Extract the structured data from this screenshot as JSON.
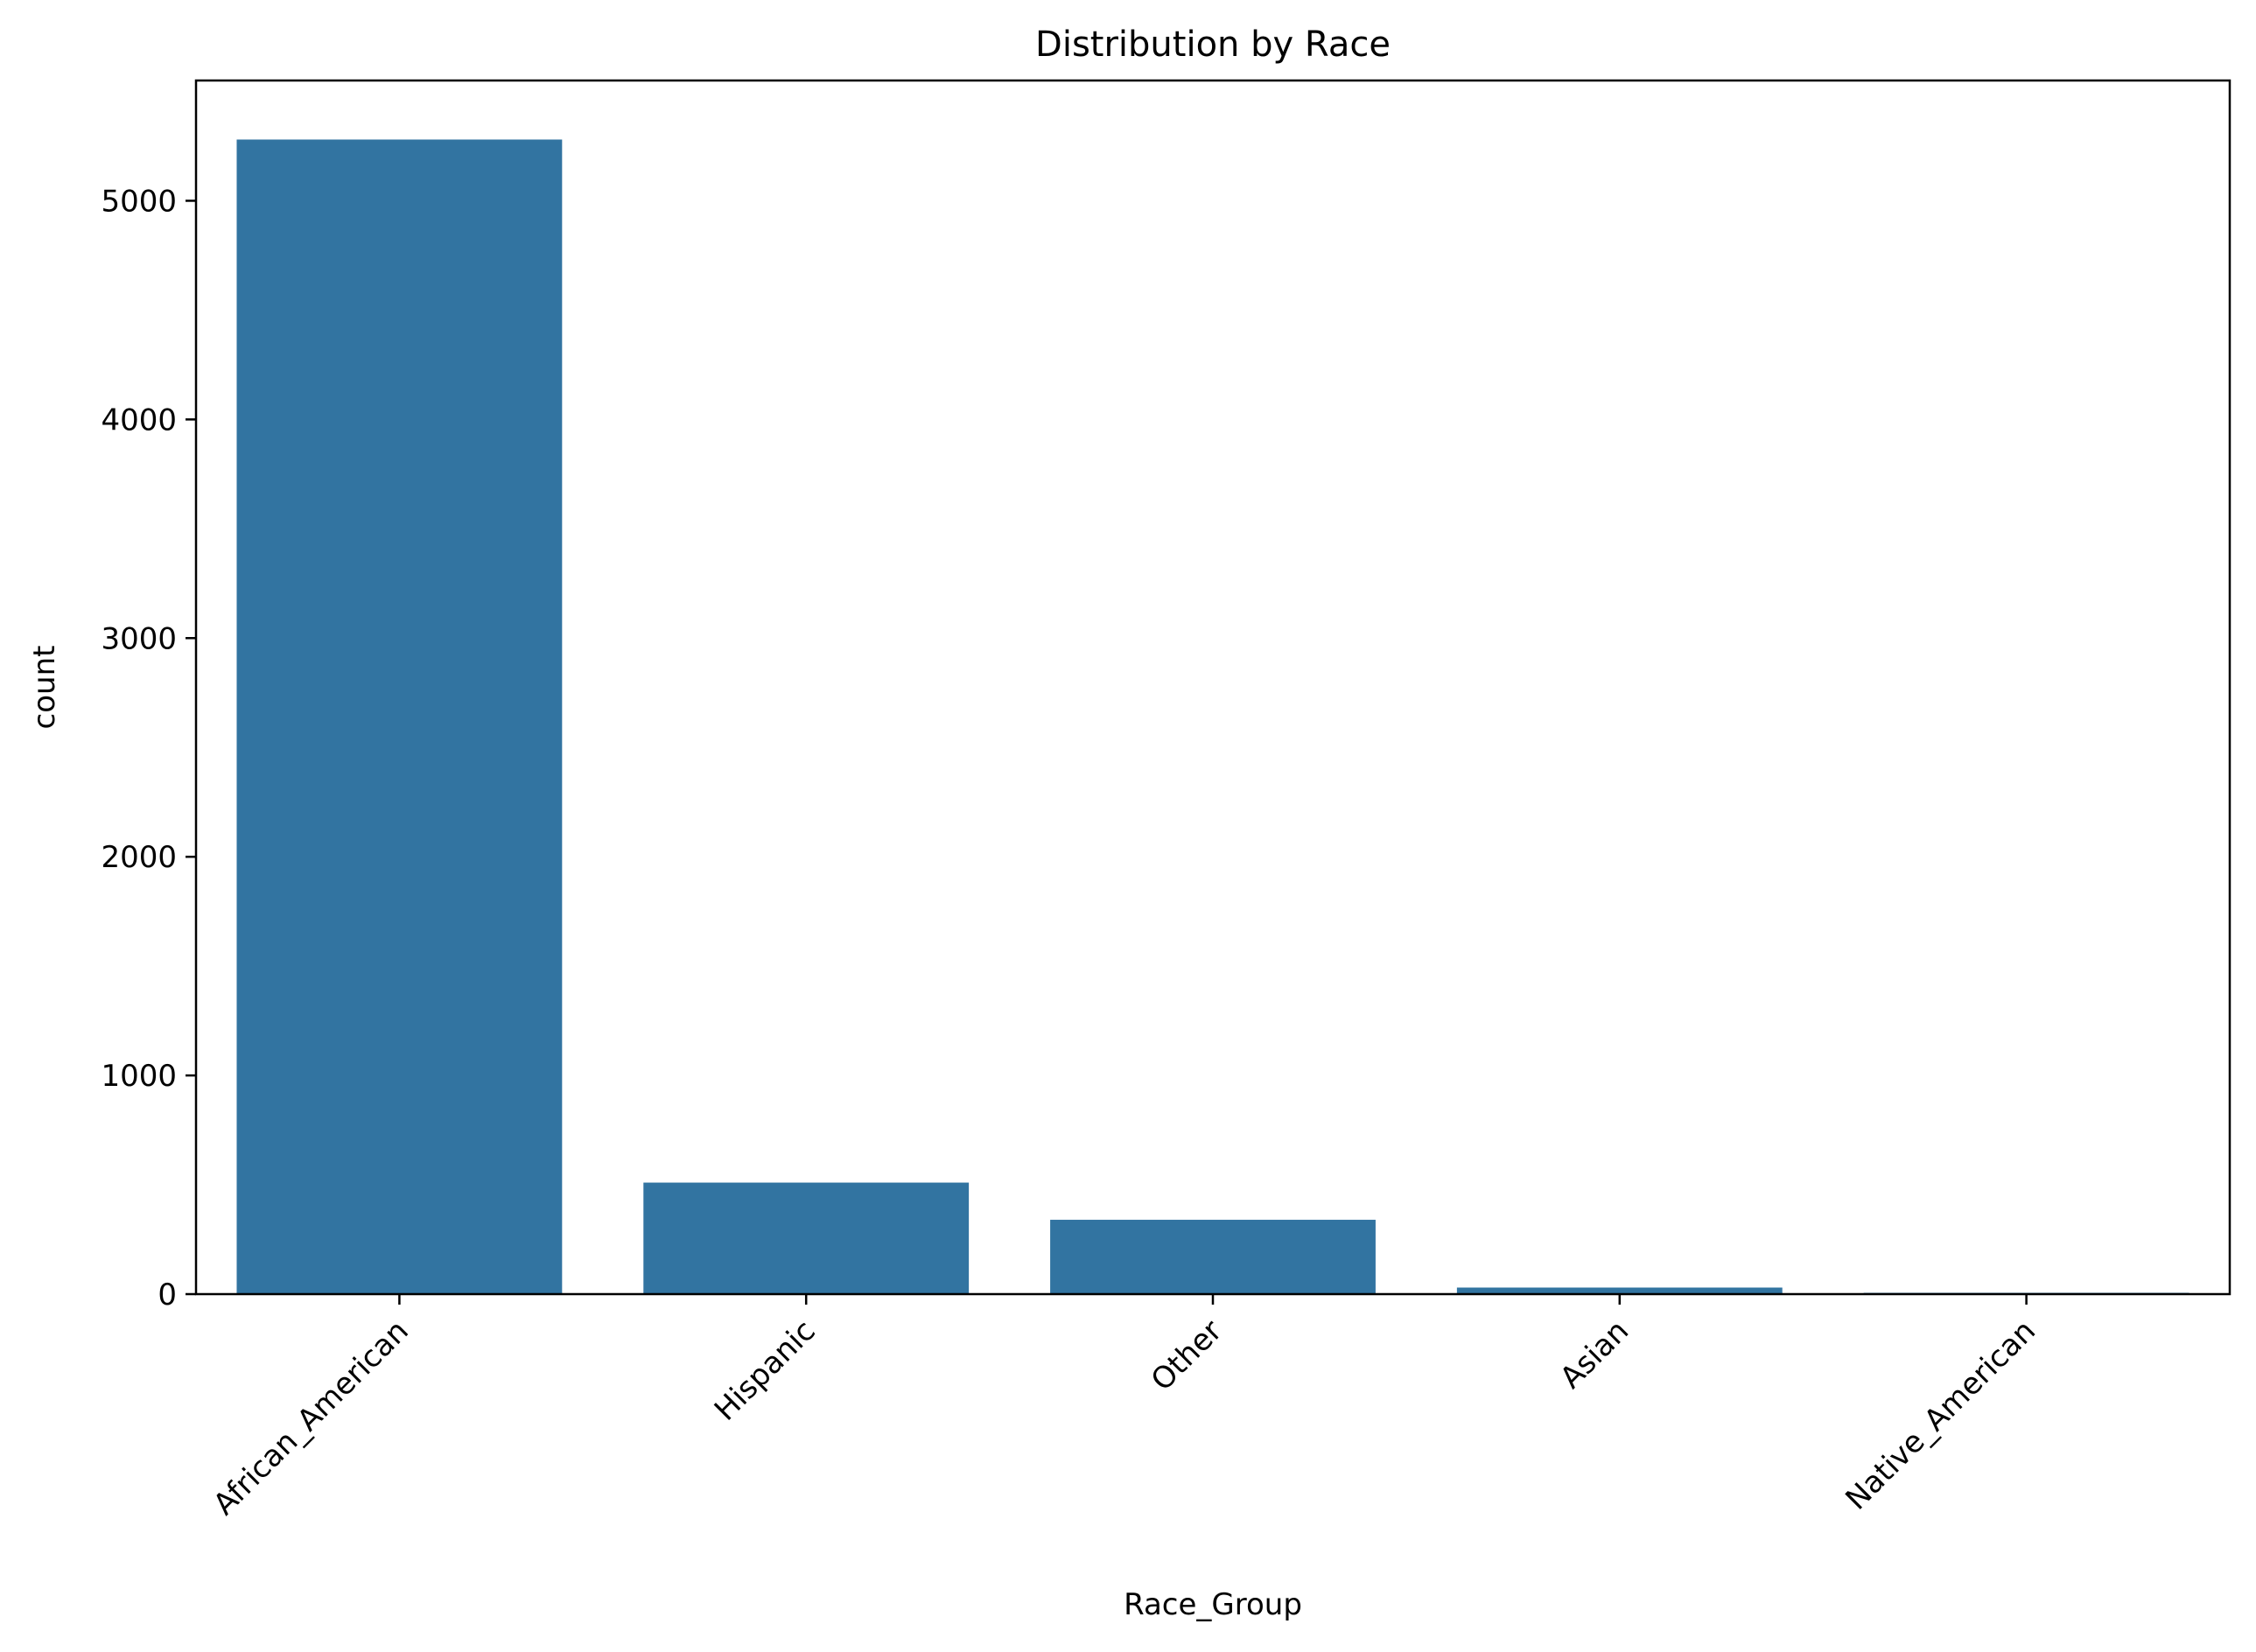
{
  "chart_data": {
    "type": "bar",
    "title": "Distribution by Race",
    "xlabel": "Race_Group",
    "ylabel": "count",
    "categories": [
      "African_American",
      "Hispanic",
      "Other",
      "Asian",
      "Native_American"
    ],
    "values": [
      5280,
      510,
      340,
      30,
      5
    ],
    "ylim": [
      0,
      5550
    ],
    "yticks": [
      0,
      1000,
      2000,
      3000,
      4000,
      5000
    ],
    "grid": false,
    "legend": "none",
    "bar_color": "#3274a1"
  }
}
